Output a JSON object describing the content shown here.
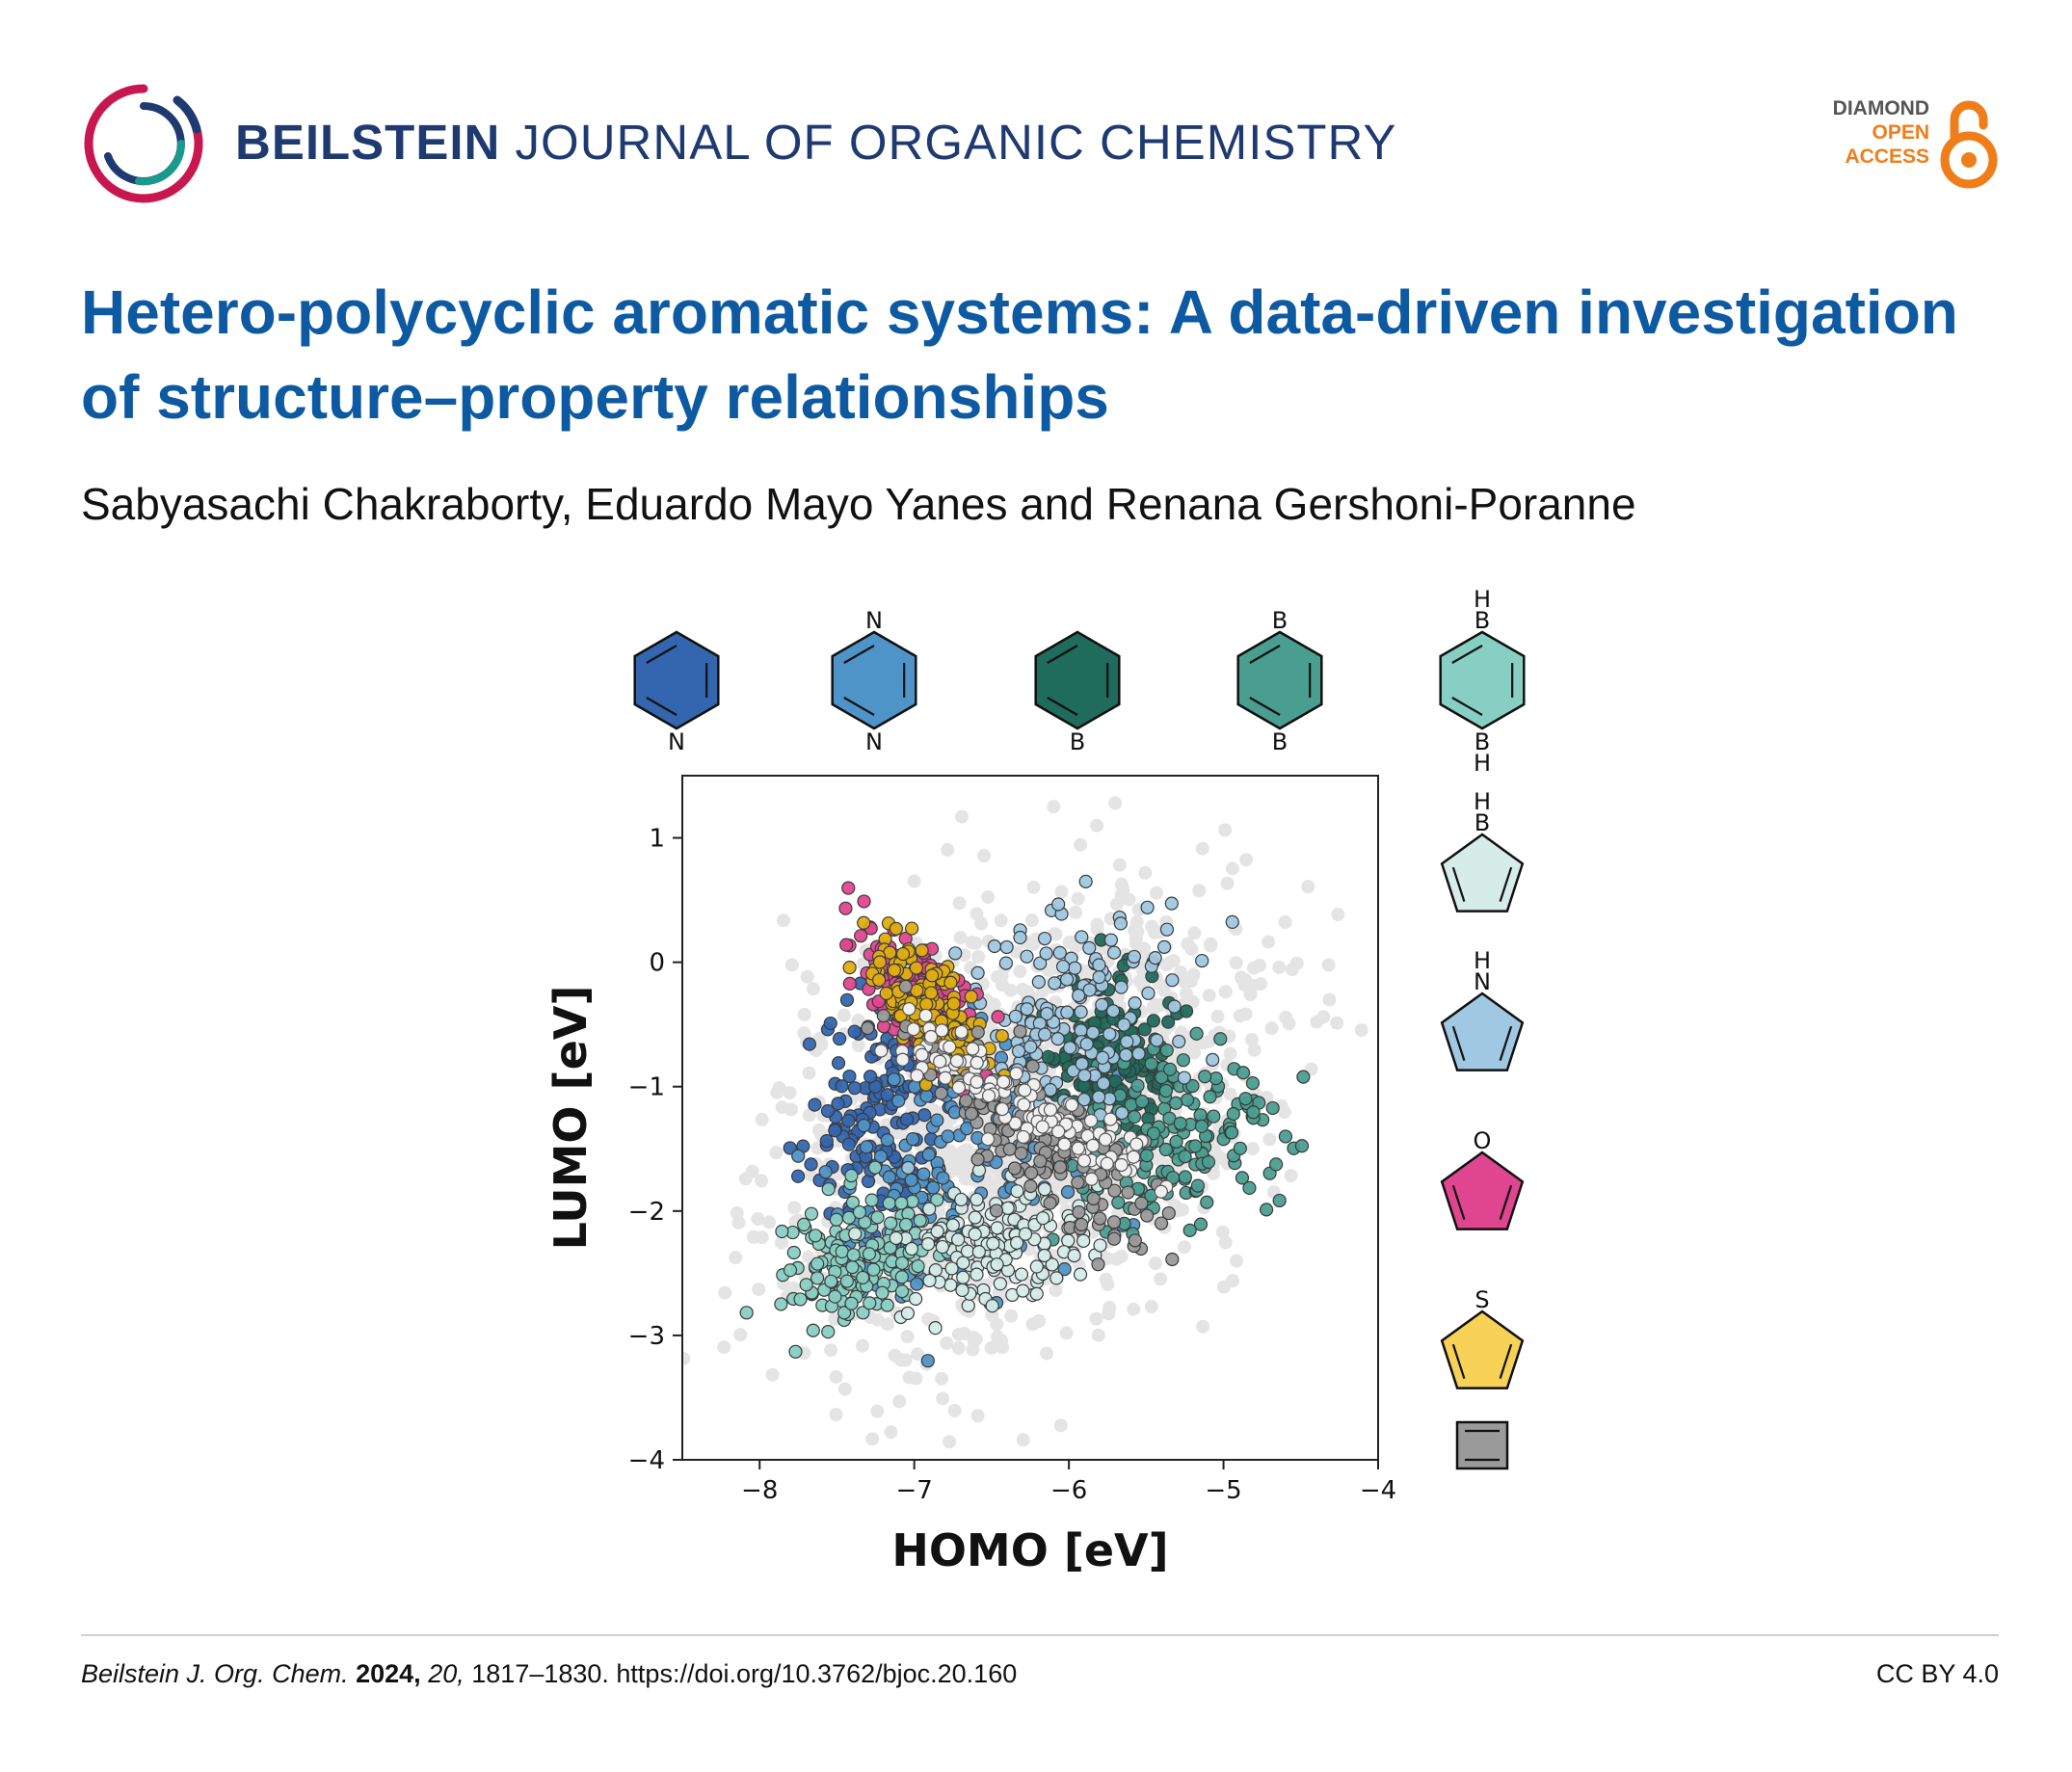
{
  "journal": {
    "name_bold": "BEILSTEIN",
    "name_rest": "JOURNAL OF ORGANIC CHEMISTRY",
    "badge": [
      "DIAMOND",
      "OPEN",
      "ACCESS"
    ]
  },
  "article": {
    "title": "Hetero-polycyclic aromatic systems: A data-driven investigation of structure–property relationships",
    "authors": "Sabyasachi Chakraborty, Eduardo Mayo Yanes and Renana Gershoni-Poranne"
  },
  "footer": {
    "journal_abbr": "Beilstein J. Org. Chem.",
    "year": "2024,",
    "volume": "20,",
    "pages_doi": "1817–1830. https://doi.org/10.3762/bjoc.20.160",
    "license": "CC BY 4.0"
  },
  "chart_data": {
    "type": "scatter",
    "xlabel": "HOMO [eV]",
    "ylabel": "LUMO [eV]",
    "xlim": [
      -8.5,
      -4
    ],
    "ylim": [
      -4,
      1.5
    ],
    "xticks": [
      -8,
      -7,
      -6,
      -5,
      -4
    ],
    "yticks": [
      -4,
      -3,
      -2,
      -1,
      0,
      1
    ],
    "xtick_labels": [
      "−8",
      "−7",
      "−6",
      "−5",
      "−4"
    ],
    "ytick_labels": [
      "−4",
      "−3",
      "−2",
      "−1",
      "0",
      "1"
    ],
    "grid": false,
    "legend": "right and top (ring structure icons)",
    "colors": {
      "background": "#e4e4e4",
      "pyridine": "#3466b0",
      "pyrazine": "#4f94c8",
      "borinine": "#1f6b5c",
      "diborinine": "#4a9e90",
      "dihydrodiborinine": "#88cfc3",
      "borole": "#d5ece8",
      "pyrrole": "#a0c8e2",
      "furan": "#e0468f",
      "thiophene": "#f7d257",
      "benzene": "#9a9a9a",
      "thiophene_dots": "#e0ad10",
      "white_dots": "#f0f0f0"
    },
    "series": [
      {
        "label": "N",
        "color": "#3466b0",
        "center": [
          -7.2,
          -1.2
        ],
        "spread": [
          0.25,
          0.5
        ]
      },
      {
        "label": "N",
        "color": "#4f94c8",
        "center": [
          -6.7,
          -1.7
        ],
        "spread": [
          0.4,
          0.5
        ]
      },
      {
        "label": "B",
        "color": "#1f6b5c",
        "center": [
          -5.7,
          -0.8
        ],
        "spread": [
          0.2,
          0.3
        ]
      },
      {
        "label": "B",
        "color": "#4a9e90",
        "center": [
          -5.3,
          -1.4
        ],
        "spread": [
          0.35,
          0.35
        ]
      },
      {
        "label": "HB",
        "color": "#88cfc3",
        "center": [
          -7.4,
          -2.4
        ],
        "spread": [
          0.25,
          0.25
        ]
      },
      {
        "label": "HB",
        "color": "#d5ece8",
        "center": [
          -6.5,
          -2.3
        ],
        "spread": [
          0.3,
          0.25
        ]
      },
      {
        "label": "HN",
        "color": "#a0c8e2",
        "center": [
          -6.0,
          -0.5
        ],
        "spread": [
          0.35,
          0.5
        ]
      },
      {
        "label": "O",
        "color": "#e0468f",
        "center": [
          -7.0,
          -0.3
        ],
        "spread": [
          0.2,
          0.25
        ]
      },
      {
        "label": "S",
        "color": "#e0ad10",
        "center": [
          -6.9,
          -0.4
        ],
        "spread": [
          0.2,
          0.2
        ]
      },
      {
        "label": "",
        "color": "#9a9a9a",
        "center": [
          -6.2,
          -1.4
        ],
        "spread": [
          0.35,
          0.25
        ]
      }
    ],
    "structures_top": [
      {
        "name": "pyridine",
        "fill": "#3466b0",
        "labels": [
          "N"
        ]
      },
      {
        "name": "pyrazine",
        "fill": "#4f94c8",
        "labels": [
          "N",
          "N"
        ]
      },
      {
        "name": "borinine",
        "fill": "#1f6b5c",
        "labels": [
          "B"
        ]
      },
      {
        "name": "diborinine",
        "fill": "#4a9e90",
        "labels": [
          "B",
          "B"
        ]
      },
      {
        "name": "dihydrodiborinine",
        "fill": "#88cfc3",
        "labels": [
          "H",
          "B",
          "B",
          "H"
        ]
      }
    ],
    "structures_side": [
      {
        "name": "borole",
        "fill": "#d5ece8",
        "labels": [
          "H",
          "B"
        ]
      },
      {
        "name": "pyrrole",
        "fill": "#a0c8e2",
        "labels": [
          "H",
          "N"
        ]
      },
      {
        "name": "furan",
        "fill": "#e0468f",
        "labels": [
          "O"
        ]
      },
      {
        "name": "thiophene",
        "fill": "#f7d257",
        "labels": [
          "S"
        ]
      },
      {
        "name": "cyclobutadiene",
        "fill": "#9a9a9a",
        "labels": []
      }
    ]
  }
}
